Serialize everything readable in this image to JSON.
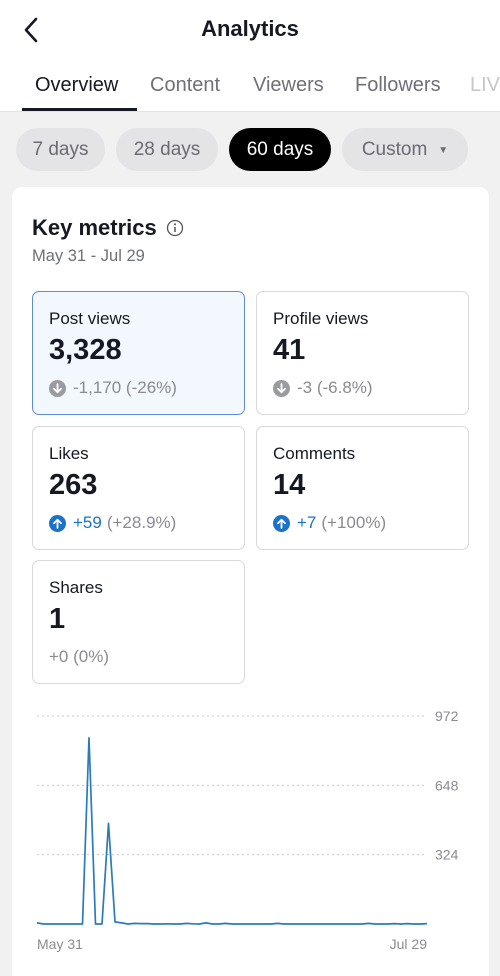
{
  "header": {
    "title": "Analytics",
    "back_icon": "chevron-left-icon"
  },
  "tabs": [
    {
      "label": "Overview",
      "active": true
    },
    {
      "label": "Content",
      "active": false
    },
    {
      "label": "Viewers",
      "active": false
    },
    {
      "label": "Followers",
      "active": false
    },
    {
      "label": "LIVE",
      "active": false
    }
  ],
  "ranges": [
    {
      "label": "7 days",
      "active": false
    },
    {
      "label": "28 days",
      "active": false
    },
    {
      "label": "60 days",
      "active": true
    },
    {
      "label": "Custom",
      "active": false
    }
  ],
  "key_metrics": {
    "title": "Key metrics",
    "info_icon": "info-icon",
    "date_range": "May 31 - Jul 29",
    "cards": [
      {
        "label": "Post views",
        "value": "3,328",
        "direction": "down",
        "change": "-1,170 (-26%)",
        "selected": true
      },
      {
        "label": "Profile views",
        "value": "41",
        "direction": "down",
        "change": "-3 (-6.8%)",
        "selected": false
      },
      {
        "label": "Likes",
        "value": "263",
        "direction": "up",
        "change_num": "+59",
        "change_pct": "(+28.9%)",
        "selected": false
      },
      {
        "label": "Comments",
        "value": "14",
        "direction": "up",
        "change_num": "+7",
        "change_pct": "(+100%)",
        "selected": false
      },
      {
        "label": "Shares",
        "value": "1",
        "direction": "flat",
        "change": "+0 (0%)",
        "selected": false
      }
    ]
  },
  "colors": {
    "accent": "#1a73c8",
    "line": "#2b7bb9",
    "selected_border": "#5a8fd8"
  },
  "chart_data": {
    "type": "line",
    "series": [
      {
        "values": [
          5,
          0,
          0,
          0,
          0,
          0,
          0,
          0,
          870,
          0,
          0,
          470,
          10,
          5,
          0,
          3,
          2,
          2,
          0,
          0,
          1,
          0,
          0,
          3,
          1,
          0,
          5,
          0,
          0,
          3,
          0,
          0,
          0,
          0,
          0,
          0,
          0,
          3,
          0,
          0,
          0,
          0,
          0,
          0,
          0,
          0,
          0,
          0,
          0,
          0,
          0,
          3,
          0,
          0,
          0,
          2,
          0,
          2,
          0,
          0,
          2
        ]
      }
    ],
    "x_tick_labels": [
      "May 31",
      "Jul 29"
    ],
    "y_ticks": [
      0,
      324,
      648,
      972
    ],
    "y_tick_labels": [
      "324",
      "648",
      "972"
    ],
    "ylim": [
      0,
      972
    ],
    "grid": true
  }
}
